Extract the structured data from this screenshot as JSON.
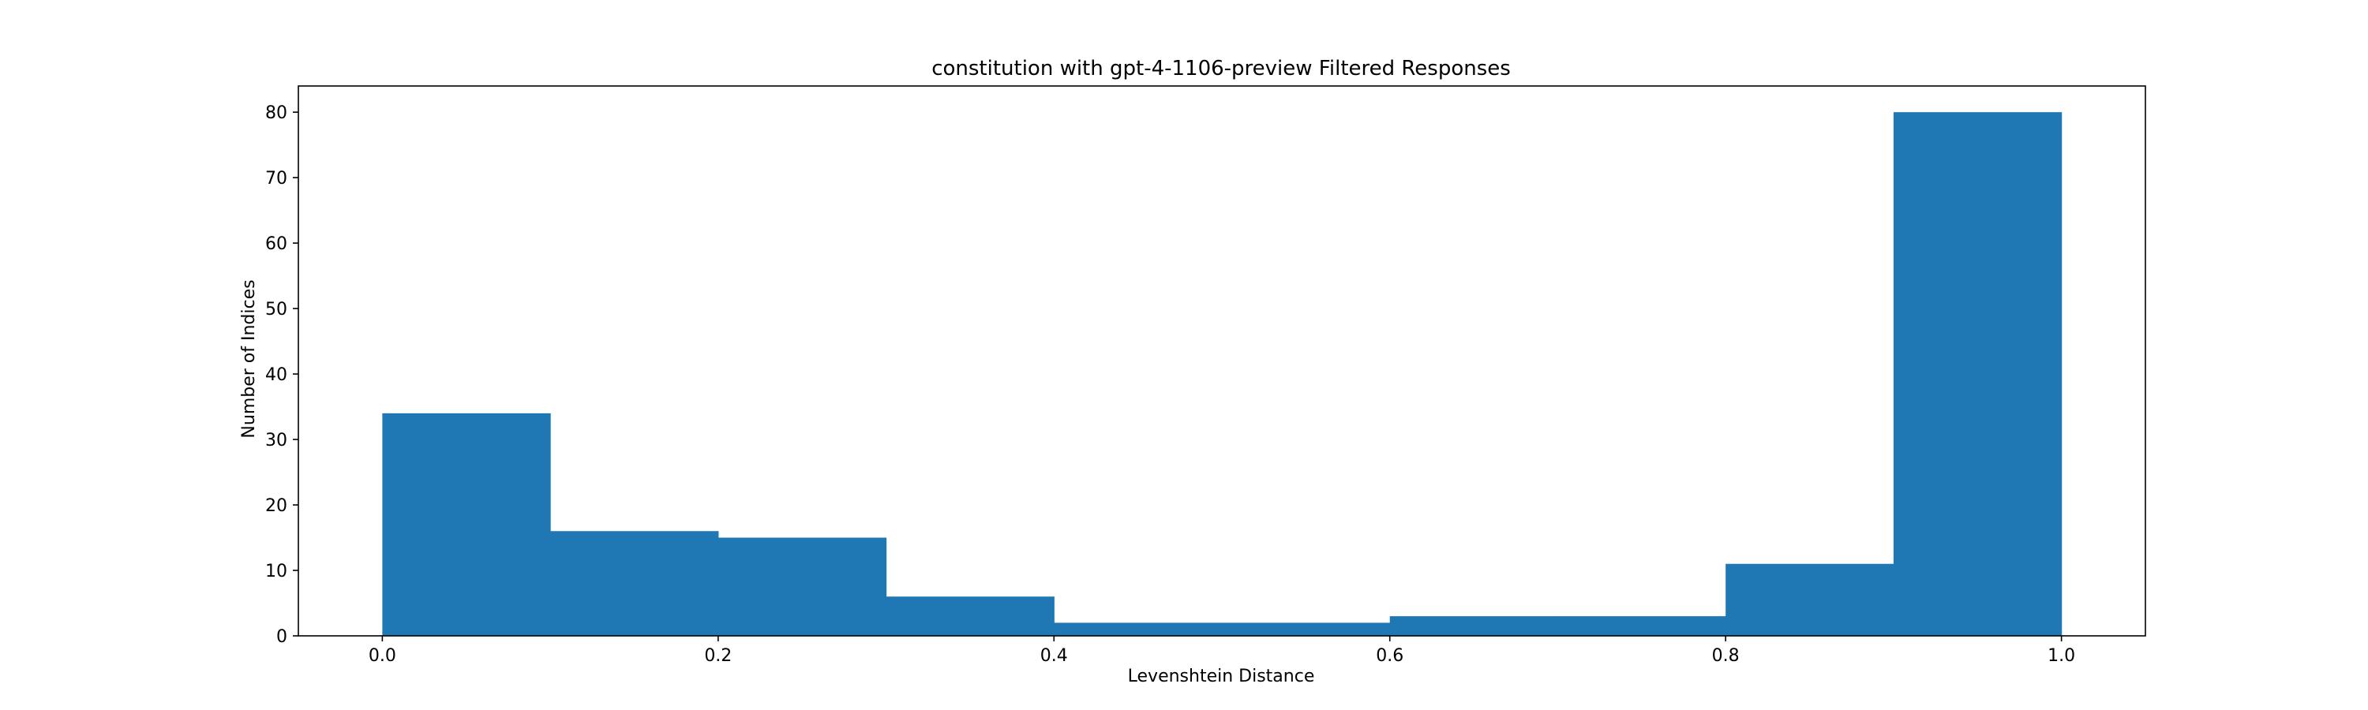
{
  "chart_data": {
    "type": "bar",
    "title": "constitution with gpt-4-1106-preview Filtered Responses",
    "xlabel": "Levenshtein Distance",
    "ylabel": "Number of Indices",
    "bins": [
      {
        "x0": 0.0,
        "x1": 0.1,
        "count": 34
      },
      {
        "x0": 0.1,
        "x1": 0.2,
        "count": 16
      },
      {
        "x0": 0.2,
        "x1": 0.3,
        "count": 15
      },
      {
        "x0": 0.3,
        "x1": 0.4,
        "count": 6
      },
      {
        "x0": 0.4,
        "x1": 0.5,
        "count": 2
      },
      {
        "x0": 0.5,
        "x1": 0.6,
        "count": 2
      },
      {
        "x0": 0.6,
        "x1": 0.7,
        "count": 3
      },
      {
        "x0": 0.7,
        "x1": 0.8,
        "count": 3
      },
      {
        "x0": 0.8,
        "x1": 0.9,
        "count": 11
      },
      {
        "x0": 0.9,
        "x1": 1.0,
        "count": 80
      }
    ],
    "xlim": [
      -0.05,
      1.05
    ],
    "ylim": [
      0,
      84
    ],
    "xticks": [
      0.0,
      0.2,
      0.4,
      0.6,
      0.8,
      1.0
    ],
    "xtick_labels": [
      "0.0",
      "0.2",
      "0.4",
      "0.6",
      "0.8",
      "1.0"
    ],
    "yticks": [
      0,
      10,
      20,
      30,
      40,
      50,
      60,
      70,
      80
    ],
    "ytick_labels": [
      "0",
      "10",
      "20",
      "30",
      "40",
      "50",
      "60",
      "70",
      "80"
    ],
    "bar_color": "#1f77b4",
    "grid": false,
    "legend": "none"
  }
}
